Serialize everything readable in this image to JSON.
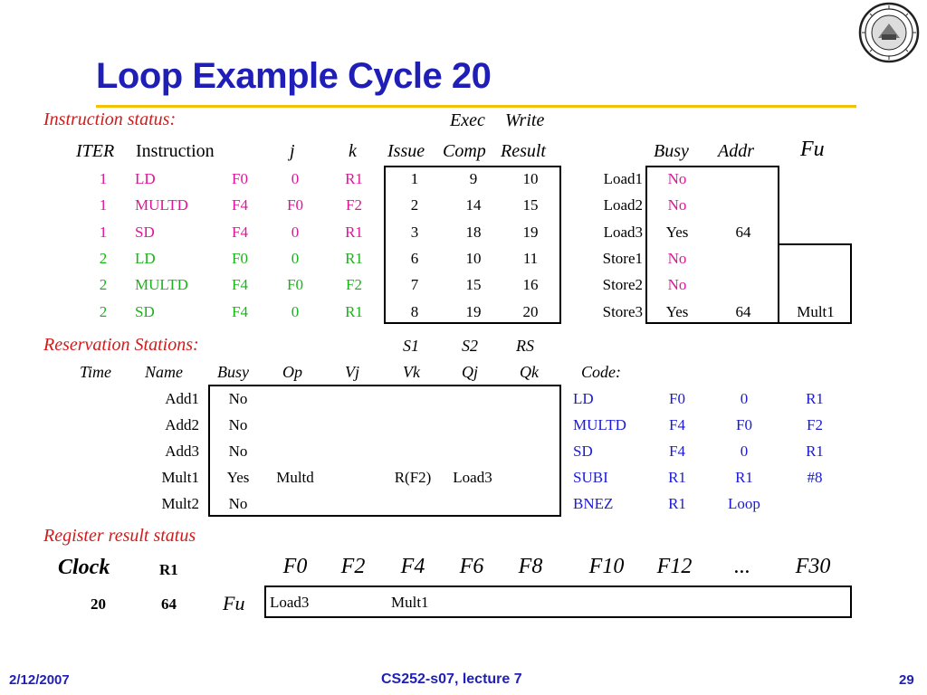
{
  "slide": {
    "title": "Loop Example Cycle 20",
    "footer_date": "2/12/2007",
    "footer_course": "CS252-s07, lecture 7",
    "footer_page": "29",
    "accent_color": "#1f1fb8",
    "rule_color": "#f2c10a"
  },
  "instr_status": {
    "label": "Instruction status:",
    "exec_label": "Exec",
    "write_label": "Write",
    "headers": {
      "iter": "ITER",
      "instruction": "Instruction",
      "j": "j",
      "k": "k",
      "issue": "Issue",
      "comp": "Comp",
      "result": "Result"
    },
    "rows": [
      {
        "iter": "1",
        "op": "LD",
        "dest": "F0",
        "j": "0",
        "k": "R1",
        "issue": "1",
        "comp": "9",
        "result": "10"
      },
      {
        "iter": "1",
        "op": "MULTD",
        "dest": "F4",
        "j": "F0",
        "k": "F2",
        "issue": "2",
        "comp": "14",
        "result": "15"
      },
      {
        "iter": "1",
        "op": "SD",
        "dest": "F4",
        "j": "0",
        "k": "R1",
        "issue": "3",
        "comp": "18",
        "result": "19"
      },
      {
        "iter": "2",
        "op": "LD",
        "dest": "F0",
        "j": "0",
        "k": "R1",
        "issue": "6",
        "comp": "10",
        "result": "11"
      },
      {
        "iter": "2",
        "op": "MULTD",
        "dest": "F4",
        "j": "F0",
        "k": "F2",
        "issue": "7",
        "comp": "15",
        "result": "16"
      },
      {
        "iter": "2",
        "op": "SD",
        "dest": "F4",
        "j": "0",
        "k": "R1",
        "issue": "8",
        "comp": "19",
        "result": "20"
      }
    ]
  },
  "load_store": {
    "headers": {
      "busy": "Busy",
      "addr": "Addr",
      "fu": "Fu"
    },
    "rows": [
      {
        "name": "Load1",
        "busy": "No",
        "addr": "",
        "fu": ""
      },
      {
        "name": "Load2",
        "busy": "No",
        "addr": "",
        "fu": ""
      },
      {
        "name": "Load3",
        "busy": "Yes",
        "addr": "64",
        "fu": ""
      },
      {
        "name": "Store1",
        "busy": "No",
        "addr": "",
        "fu": ""
      },
      {
        "name": "Store2",
        "busy": "No",
        "addr": "",
        "fu": ""
      },
      {
        "name": "Store3",
        "busy": "Yes",
        "addr": "64",
        "fu": "Mult1"
      }
    ]
  },
  "res_stations": {
    "label": "Reservation Stations:",
    "s1": "S1",
    "s2": "S2",
    "rs": "RS",
    "headers": {
      "time": "Time",
      "name": "Name",
      "busy": "Busy",
      "op": "Op",
      "vj": "Vj",
      "vk": "Vk",
      "qj": "Qj",
      "qk": "Qk",
      "code": "Code:"
    },
    "rows": [
      {
        "time": "",
        "name": "Add1",
        "busy": "No",
        "op": "",
        "vj": "",
        "vk": "",
        "qj": "",
        "qk": ""
      },
      {
        "time": "",
        "name": "Add2",
        "busy": "No",
        "op": "",
        "vj": "",
        "vk": "",
        "qj": "",
        "qk": ""
      },
      {
        "time": "",
        "name": "Add3",
        "busy": "No",
        "op": "",
        "vj": "",
        "vk": "",
        "qj": "",
        "qk": ""
      },
      {
        "time": "",
        "name": "Mult1",
        "busy": "Yes",
        "op": "Multd",
        "vj": "",
        "vk": "R(F2)",
        "qj": "Load3",
        "qk": ""
      },
      {
        "time": "",
        "name": "Mult2",
        "busy": "No",
        "op": "",
        "vj": "",
        "vk": "",
        "qj": "",
        "qk": ""
      }
    ]
  },
  "code": [
    {
      "op": "LD",
      "a": "F0",
      "b": "0",
      "c": "R1"
    },
    {
      "op": "MULTD",
      "a": "F4",
      "b": "F0",
      "c": "F2"
    },
    {
      "op": "SD",
      "a": "F4",
      "b": "0",
      "c": "R1"
    },
    {
      "op": "SUBI",
      "a": "R1",
      "b": "R1",
      "c": "#8"
    },
    {
      "op": "BNEZ",
      "a": "R1",
      "b": "Loop",
      "c": ""
    }
  ],
  "reg_status": {
    "label": "Register result status",
    "clock_label": "Clock",
    "r1_label": "R1",
    "clock": "20",
    "r1": "64",
    "fu_label": "Fu",
    "regs": [
      "F0",
      "F2",
      "F4",
      "F6",
      "F8",
      "F10",
      "F12",
      "...",
      "F30"
    ],
    "values": [
      "Load3",
      "",
      "Mult1",
      "",
      "",
      "",
      "",
      "",
      ""
    ]
  }
}
